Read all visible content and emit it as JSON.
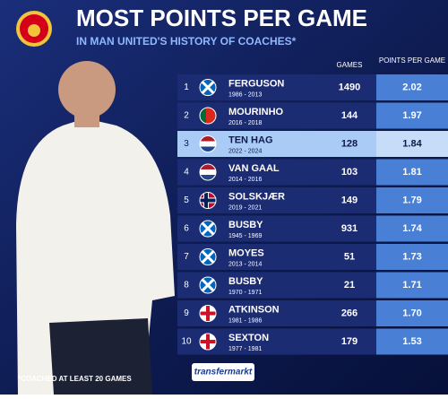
{
  "header": {
    "title": "MOST POINTS PER GAME",
    "subtitle": "IN MAN UNITED'S HISTORY OF COACHES*"
  },
  "table": {
    "columns": [
      "GAMES",
      "POINTS PER GAME"
    ],
    "rows": [
      [
        "1",
        "FERGUSON",
        "1986 - 2013",
        "1490",
        "2.02"
      ],
      [
        "2",
        "MOURINHO",
        "2016 - 2018",
        "144",
        "1.97"
      ],
      [
        "3",
        "TEN HAG",
        "2022 - 2024",
        "128",
        "1.84"
      ],
      [
        "4",
        "VAN GAAL",
        "2014 - 2016",
        "103",
        "1.81"
      ],
      [
        "5",
        "SOLSKJÆR",
        "2019 - 2021",
        "149",
        "1.79"
      ],
      [
        "6",
        "BUSBY",
        "1945 - 1969",
        "931",
        "1.74"
      ],
      [
        "7",
        "MOYES",
        "2013 - 2014",
        "51",
        "1.73"
      ],
      [
        "8",
        "BUSBY",
        "1970 - 1971",
        "21",
        "1.71"
      ],
      [
        "9",
        "ATKINSON",
        "1981 - 1986",
        "266",
        "1.70"
      ],
      [
        "10",
        "SEXTON",
        "1977 - 1981",
        "179",
        "1.53"
      ]
    ]
  },
  "footer": {
    "note": "*COACHED AT LEAST 20 GAMES",
    "brand": "transfermarkt"
  }
}
